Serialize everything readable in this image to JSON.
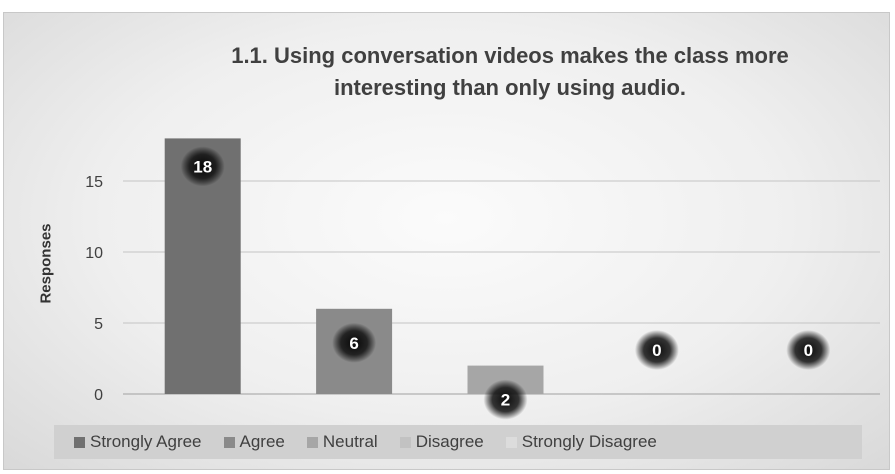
{
  "chart_data": {
    "type": "bar",
    "title": "1.1. Using conversation videos makes the class more interesting than only using audio.",
    "title_line1": "1.1. Using conversation videos makes the class more",
    "title_line2": "interesting than only using audio.",
    "xlabel": "",
    "ylabel": "Responses",
    "categories": [
      "Strongly Agree",
      "Agree",
      "Neutral",
      "Disagree",
      "Strongly Disagree"
    ],
    "values": [
      18,
      6,
      2,
      0,
      0
    ],
    "colors": [
      "#707070",
      "#8a8a8a",
      "#a6a6a6",
      "#c2c2c2",
      "#dcdcdc"
    ],
    "ylim": [
      0,
      18
    ],
    "yticks": [
      0,
      5,
      10,
      15
    ],
    "grid": true,
    "legend_position": "bottom"
  }
}
